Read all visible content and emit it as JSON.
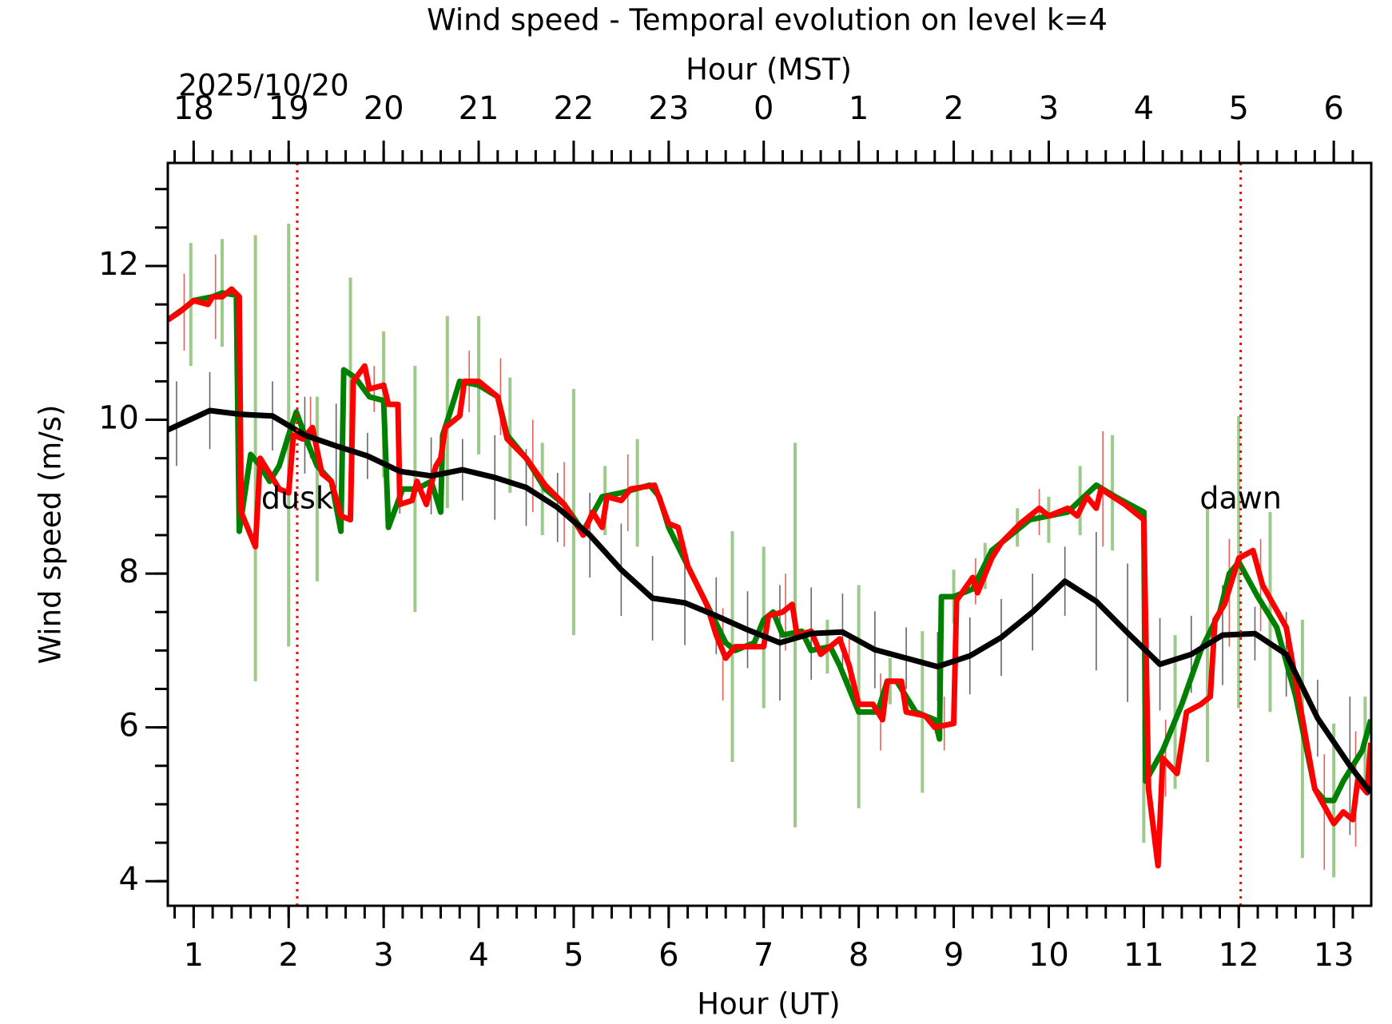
{
  "chart_data": {
    "type": "line",
    "title": "Wind speed - Temporal evolution on level k=4",
    "xlabel": "Hour (UT)",
    "x2label": "Hour (MST)",
    "ylabel": "Wind speed (m/s)",
    "date_label": "2025/10/20",
    "xlim": [
      0.728,
      13.394
    ],
    "xticks": [
      1,
      2,
      3,
      4,
      5,
      6,
      7,
      8,
      9,
      10,
      11,
      12,
      13
    ],
    "x2ticks": [
      {
        "value": 1,
        "label": "18"
      },
      {
        "value": 2,
        "label": "19"
      },
      {
        "value": 3,
        "label": "20"
      },
      {
        "value": 4,
        "label": "21"
      },
      {
        "value": 5,
        "label": "22"
      },
      {
        "value": 6,
        "label": "23"
      },
      {
        "value": 7,
        "label": "0"
      },
      {
        "value": 8,
        "label": "1"
      },
      {
        "value": 9,
        "label": "2"
      },
      {
        "value": 10,
        "label": "3"
      },
      {
        "value": 11,
        "label": "4"
      },
      {
        "value": 12,
        "label": "5"
      },
      {
        "value": 13,
        "label": "6"
      }
    ],
    "x_minor_step": 0.2,
    "ylim": [
      3.68,
      13.34
    ],
    "yticks": [
      4,
      6,
      8,
      10,
      12
    ],
    "y_minor_step": 0.5,
    "errorbars": [
      {
        "color": "#9dc98a",
        "x": [
          0.97,
          1.3,
          1.65,
          2.0,
          2.3,
          2.65,
          3.0,
          3.33,
          3.67,
          4.0,
          4.33,
          4.67,
          5.0,
          5.33,
          5.67,
          6.67,
          7.0,
          7.33,
          7.67,
          8.0,
          8.33,
          8.67,
          9.0,
          9.33,
          9.67,
          10.0,
          10.33,
          10.67,
          11.0,
          11.33,
          11.67,
          12.0,
          12.33,
          12.67,
          13.0,
          13.33
        ],
        "values": [
          11.5,
          11.65,
          9.5,
          9.8,
          9.1,
          10.6,
          10.2,
          9.1,
          10.1,
          10.45,
          9.8,
          9.1,
          8.8,
          8.95,
          9.05,
          7.05,
          7.3,
          7.2,
          7.05,
          6.4,
          6.6,
          6.2,
          7.7,
          8.1,
          8.6,
          8.7,
          8.95,
          9.05,
          5.3,
          6.2,
          7.2,
          8.15,
          7.5,
          5.85,
          5.05,
          5.8
        ],
        "errors": [
          0.8,
          0.7,
          2.9,
          2.75,
          1.2,
          1.25,
          0.95,
          1.6,
          1.25,
          0.9,
          0.75,
          0.6,
          1.6,
          0.45,
          0.7,
          1.5,
          1.05,
          2.5,
          0.35,
          1.45,
          0.3,
          1.05,
          0.35,
          0.3,
          0.25,
          0.3,
          0.45,
          0.75,
          0.8,
          1.0,
          1.65,
          1.9,
          1.3,
          1.55,
          1.0,
          0.6
        ]
      },
      {
        "color": "#e8605a",
        "x": [
          0.9,
          1.23,
          2.23,
          2.9,
          3.9,
          4.23,
          4.57,
          4.9,
          5.57,
          6.57,
          7.23,
          7.9,
          8.23,
          8.9,
          9.23,
          9.9,
          10.57,
          11.23,
          11.9,
          12.23,
          12.9,
          13.23
        ],
        "values": [
          11.4,
          11.6,
          9.9,
          10.4,
          10.5,
          10.3,
          9.4,
          8.9,
          9.05,
          6.95,
          7.5,
          6.8,
          6.2,
          6.05,
          7.9,
          8.8,
          9.1,
          5.6,
          7.75,
          7.85,
          4.9,
          5.2
        ],
        "errors": [
          0.5,
          0.55,
          0.4,
          0.3,
          0.4,
          0.5,
          0.6,
          0.55,
          0.5,
          0.6,
          0.5,
          0.35,
          0.5,
          0.35,
          0.3,
          0.3,
          0.75,
          0.5,
          0.7,
          0.6,
          0.75,
          0.75
        ]
      },
      {
        "color": "#666666",
        "x": [
          0.82,
          1.17,
          1.5,
          1.83,
          2.17,
          2.5,
          2.83,
          3.17,
          3.5,
          3.83,
          4.17,
          4.5,
          4.83,
          5.17,
          5.5,
          5.83,
          6.17,
          6.5,
          6.83,
          7.17,
          7.5,
          7.83,
          8.17,
          8.5,
          8.83,
          9.17,
          9.5,
          9.83,
          10.17,
          10.5,
          10.83,
          11.17,
          11.5,
          11.83,
          12.17,
          12.5,
          12.83,
          13.17
        ],
        "values": [
          9.95,
          10.12,
          10.07,
          10.05,
          9.8,
          9.66,
          9.53,
          9.33,
          9.27,
          9.35,
          9.25,
          9.12,
          8.86,
          8.5,
          8.05,
          7.68,
          7.62,
          7.45,
          7.27,
          7.1,
          7.22,
          7.24,
          7.01,
          6.9,
          6.79,
          6.93,
          7.17,
          7.5,
          7.9,
          7.64,
          7.23,
          6.82,
          6.95,
          7.2,
          7.22,
          6.95,
          6.12,
          5.5
        ],
        "errors": [
          0.55,
          0.5,
          0.55,
          0.45,
          0.5,
          0.55,
          0.3,
          0.55,
          0.5,
          0.4,
          0.55,
          0.5,
          0.45,
          0.55,
          0.6,
          0.55,
          0.55,
          0.5,
          0.5,
          0.75,
          0.6,
          0.5,
          0.5,
          0.4,
          0.45,
          0.5,
          0.5,
          0.5,
          0.45,
          0.9,
          0.9,
          0.6,
          0.5,
          0.65,
          0.35,
          0.55,
          0.5,
          0.9
        ]
      }
    ],
    "series": [
      {
        "color": "#008000",
        "x": [
          0.73,
          0.9,
          1.0,
          1.2,
          1.3,
          1.45,
          1.48,
          1.6,
          1.7,
          1.8,
          1.9,
          2.0,
          2.08,
          2.2,
          2.3,
          2.45,
          2.55,
          2.58,
          2.7,
          2.85,
          3.0,
          3.05,
          3.2,
          3.35,
          3.5,
          3.6,
          3.62,
          3.7,
          3.8,
          4.0,
          4.2,
          4.3,
          4.5,
          4.7,
          4.9,
          5.1,
          5.3,
          5.5,
          5.8,
          5.9,
          6.0,
          6.2,
          6.4,
          6.6,
          6.7,
          6.9,
          7.0,
          7.1,
          7.2,
          7.4,
          7.5,
          7.7,
          7.8,
          7.9,
          8.0,
          8.2,
          8.3,
          8.4,
          8.6,
          8.8,
          8.85,
          8.87,
          9.0,
          9.2,
          9.4,
          9.6,
          9.8,
          10.0,
          10.2,
          10.5,
          10.7,
          11.0,
          11.02,
          11.2,
          11.4,
          11.6,
          11.8,
          11.9,
          12.0,
          12.2,
          12.4,
          12.6,
          12.8,
          12.9,
          13.0,
          13.1,
          13.3,
          13.39
        ],
        "values": [
          11.3,
          11.45,
          11.55,
          11.6,
          11.65,
          11.62,
          8.55,
          9.55,
          9.4,
          9.2,
          9.4,
          9.8,
          10.1,
          9.7,
          9.4,
          9.2,
          8.55,
          10.65,
          10.55,
          10.3,
          10.25,
          8.6,
          9.1,
          9.1,
          9.2,
          8.8,
          9.8,
          10.1,
          10.5,
          10.45,
          10.3,
          9.8,
          9.5,
          9.1,
          8.9,
          8.55,
          9.0,
          9.05,
          9.15,
          9.0,
          8.6,
          8.1,
          7.6,
          7.1,
          7.0,
          7.1,
          7.4,
          7.5,
          7.2,
          7.25,
          7.0,
          7.05,
          6.8,
          6.5,
          6.2,
          6.2,
          6.6,
          6.6,
          6.2,
          6.1,
          5.85,
          7.7,
          7.7,
          7.8,
          8.3,
          8.5,
          8.7,
          8.75,
          8.8,
          9.15,
          9.0,
          8.8,
          5.3,
          5.7,
          6.3,
          7.0,
          7.5,
          8.0,
          8.15,
          7.7,
          7.3,
          6.4,
          5.2,
          5.05,
          5.05,
          5.3,
          5.7,
          6.1
        ]
      },
      {
        "color": "#ff0000",
        "x": [
          0.73,
          0.85,
          1.0,
          1.15,
          1.2,
          1.3,
          1.4,
          1.48,
          1.5,
          1.65,
          1.7,
          1.8,
          1.9,
          2.0,
          2.05,
          2.15,
          2.25,
          2.35,
          2.45,
          2.55,
          2.65,
          2.68,
          2.8,
          2.85,
          3.0,
          3.05,
          3.15,
          3.17,
          3.3,
          3.35,
          3.45,
          3.55,
          3.6,
          3.65,
          3.8,
          3.85,
          4.0,
          4.2,
          4.3,
          4.5,
          4.7,
          4.9,
          5.1,
          5.2,
          5.3,
          5.35,
          5.5,
          5.6,
          5.85,
          6.0,
          6.1,
          6.2,
          6.4,
          6.5,
          6.6,
          6.7,
          7.0,
          7.05,
          7.2,
          7.3,
          7.35,
          7.5,
          7.6,
          7.8,
          7.9,
          8.0,
          8.15,
          8.25,
          8.3,
          8.45,
          8.5,
          8.7,
          8.8,
          9.0,
          9.03,
          9.2,
          9.25,
          9.4,
          9.5,
          9.7,
          9.9,
          10.0,
          10.2,
          10.3,
          10.4,
          10.5,
          10.55,
          10.8,
          11.0,
          11.05,
          11.15,
          11.2,
          11.35,
          11.45,
          11.6,
          11.7,
          11.75,
          11.85,
          12.0,
          12.15,
          12.25,
          12.5,
          12.6,
          12.8,
          13.0,
          13.1,
          13.2,
          13.25,
          13.35,
          13.39
        ],
        "values": [
          11.3,
          11.4,
          11.55,
          11.5,
          11.6,
          11.6,
          11.7,
          11.6,
          8.8,
          8.35,
          9.5,
          9.3,
          9.1,
          9.05,
          9.8,
          9.75,
          9.9,
          9.3,
          9.2,
          8.75,
          8.7,
          10.5,
          10.7,
          10.4,
          10.45,
          10.2,
          10.2,
          8.9,
          8.95,
          9.2,
          8.9,
          9.4,
          9.5,
          9.9,
          10.05,
          10.5,
          10.5,
          10.3,
          9.75,
          9.5,
          9.15,
          8.9,
          8.5,
          8.8,
          8.6,
          9.0,
          8.95,
          9.1,
          9.15,
          8.65,
          8.6,
          8.1,
          7.6,
          7.2,
          6.9,
          7.05,
          7.05,
          7.45,
          7.5,
          7.6,
          7.2,
          7.25,
          6.95,
          7.15,
          6.8,
          6.3,
          6.3,
          6.1,
          6.6,
          6.6,
          6.2,
          6.15,
          6.0,
          6.05,
          7.65,
          7.95,
          7.75,
          8.2,
          8.4,
          8.65,
          8.85,
          8.75,
          8.85,
          8.75,
          9.0,
          8.85,
          9.1,
          8.9,
          8.7,
          5.2,
          4.2,
          5.6,
          5.4,
          6.2,
          6.3,
          6.4,
          7.4,
          7.6,
          8.2,
          8.3,
          7.85,
          7.3,
          6.6,
          5.2,
          4.75,
          4.9,
          4.8,
          5.3,
          5.15,
          5.8
        ]
      },
      {
        "color": "#000000",
        "x": [
          0.73,
          1.17,
          1.5,
          1.83,
          2.17,
          2.5,
          2.83,
          3.17,
          3.5,
          3.83,
          4.17,
          4.5,
          4.83,
          5.17,
          5.5,
          5.83,
          6.17,
          6.5,
          6.83,
          7.17,
          7.5,
          7.83,
          8.17,
          8.5,
          8.83,
          9.17,
          9.5,
          9.83,
          10.17,
          10.5,
          10.83,
          11.17,
          11.5,
          11.83,
          12.17,
          12.5,
          12.83,
          13.17,
          13.39
        ],
        "values": [
          9.87,
          10.12,
          10.07,
          10.05,
          9.8,
          9.66,
          9.53,
          9.33,
          9.27,
          9.35,
          9.25,
          9.12,
          8.86,
          8.5,
          8.05,
          7.68,
          7.62,
          7.45,
          7.27,
          7.1,
          7.22,
          7.24,
          7.01,
          6.9,
          6.79,
          6.93,
          7.17,
          7.5,
          7.9,
          7.64,
          7.23,
          6.82,
          6.95,
          7.2,
          7.22,
          6.95,
          6.12,
          5.5,
          5.15
        ]
      }
    ],
    "vlines": [
      {
        "x": 2.09,
        "color": "#ff0000",
        "label": "dusk"
      },
      {
        "x": 12.02,
        "color": "#ff0000",
        "label": "dawn"
      }
    ]
  }
}
